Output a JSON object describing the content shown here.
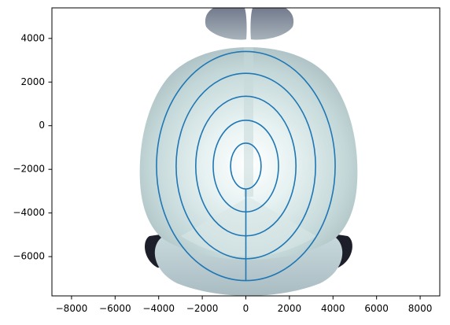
{
  "chart_data": {
    "type": "line",
    "title": "",
    "xlabel": "",
    "ylabel": "",
    "xlim": [
      -8900,
      8900
    ],
    "ylim": [
      -7800,
      5400
    ],
    "x_ticks": [
      -8000,
      -6000,
      -4000,
      -2000,
      0,
      2000,
      4000,
      6000,
      8000
    ],
    "y_ticks": [
      -6000,
      -4000,
      -2000,
      0,
      2000,
      4000
    ],
    "x_tick_labels": [
      "−8000",
      "−6000",
      "−4000",
      "−2000",
      "0",
      "2000",
      "4000",
      "6000",
      "8000"
    ],
    "y_tick_labels": [
      "−6000",
      "−4000",
      "−2000",
      "0",
      "2000",
      "4000"
    ],
    "grid": false,
    "background_image": "brain-surface-top-view",
    "contour_color": "#1f77b4",
    "contours": {
      "center": [
        0,
        -1850
      ],
      "ellipses": [
        {
          "rx": 700,
          "ry": 1050
        },
        {
          "rx": 1500,
          "ry": 2100
        },
        {
          "rx": 2300,
          "ry": 3200
        },
        {
          "rx": 3200,
          "ry": 4250
        },
        {
          "rx": 4100,
          "ry": 5250
        }
      ],
      "midline": {
        "x": 0,
        "y_from": -7100,
        "y_to": -2900
      }
    }
  }
}
